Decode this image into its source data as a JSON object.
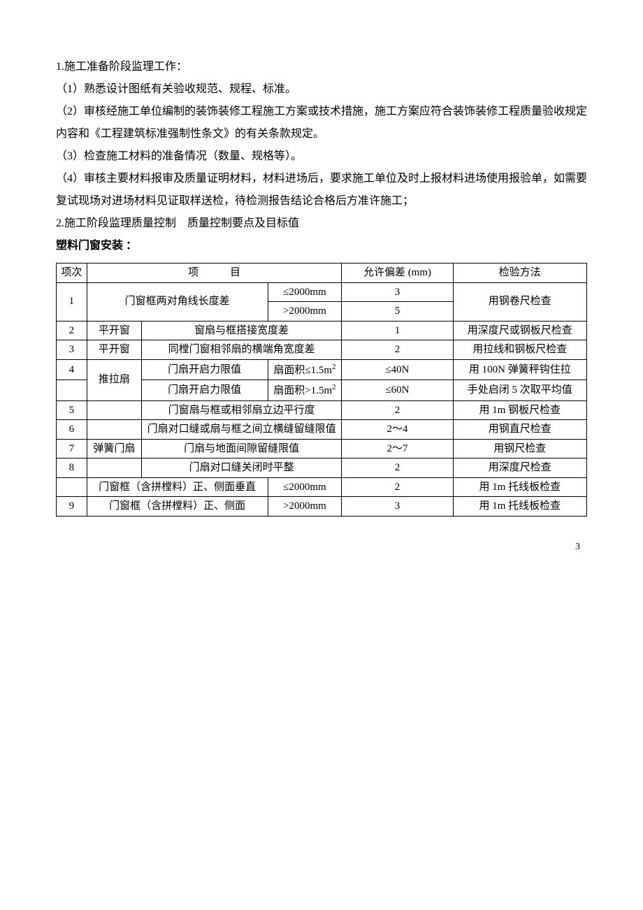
{
  "paragraphs": {
    "p1": "1.施工准备阶段监理工作：",
    "p2": "（1）熟悉设计图纸有关验收规范、规程、标准。",
    "p3": "（2）审核经施工单位编制的装饰装修工程施工方案或技术措施，施工方案应符合装饰装修工程质量验收规定内容和《工程建筑标准强制性条文》的有关条款规定。",
    "p4": "（3）检查施工材料的准备情况（数量、规格等）。",
    "p5": "（4）审核主要材料报审及质量证明材料，材料进场后，要求施工单位及时上报材料进场使用报验单，如需要复试现场对进场材料见证取样送检，待检测报告结论合格后方准许施工；",
    "p6": "2.施工阶段监理质量控制　质量控制要点及目标值",
    "p7": "塑料门窗安装 ："
  },
  "table": {
    "hdr": {
      "c1": "项次",
      "c2": "项　　　目",
      "c3": "允许偏差  (mm)",
      "c4": "检验方法"
    },
    "rows": {
      "r1": {
        "idx": "1",
        "a": "门窗框两对角线长度差",
        "b1": "≤2000mm",
        "b2": ">2000mm",
        "t1": "3",
        "t2": "5",
        "m": "用钢卷尺检查"
      },
      "r2": {
        "idx": "2",
        "a": "平开窗",
        "b": "窗扇与框搭接宽度差",
        "t": "1",
        "m": "用深度尺或钢板尺检查"
      },
      "r3": {
        "idx": "3",
        "a": "平开窗",
        "b": "同樘门窗相邻扇的横端角宽度差",
        "t": "2",
        "m": "用拉线和钢板尺检查"
      },
      "r4": {
        "idx": "4",
        "a": "推拉扇",
        "b1": "门扇开启力限值",
        "c1a": "扇面积≤",
        "c1b": "1.5m",
        "t1": "≤40N",
        "m1": "用 100N 弹簧秤钩住拉",
        "b2": "门扇开启力限值",
        "c2a": "扇面积",
        "c2b": ">1.5m",
        "t2": "≤60N",
        "m2": "手处启闭 5 次取平均值"
      },
      "r5": {
        "idx": "5",
        "b": "门窗扇与框或相邻扇立边平行度",
        "t": "2",
        "m": "用 1m 钢板尺检查"
      },
      "r6": {
        "idx": "6",
        "b": "门扇对口缝或扇与框之间立横缝留缝限值",
        "t": "2～4",
        "m": "用钢直尺检查"
      },
      "r7": {
        "idx": "7",
        "a": "弹簧门扇",
        "b": "门扇与地面间隙留缝限值",
        "t": "2～7",
        "m": "用钢尺检查"
      },
      "r8": {
        "idx": "8",
        "b": "门扇对口缝关闭时平整",
        "t": "2",
        "m": "用深度尺检查"
      },
      "r9a": {
        "a": "门窗框（含拼樘料）正、侧面垂直",
        "b": "≤2000mm",
        "t": "2",
        "m": "用 1m 托线板检查"
      },
      "r9b": {
        "idx": "9",
        "a": "门窗框（含拼樘料）正、侧面",
        "b": ">2000mm",
        "t": "3",
        "m": "用 1m 托线板检查"
      }
    }
  },
  "page_number": "3"
}
